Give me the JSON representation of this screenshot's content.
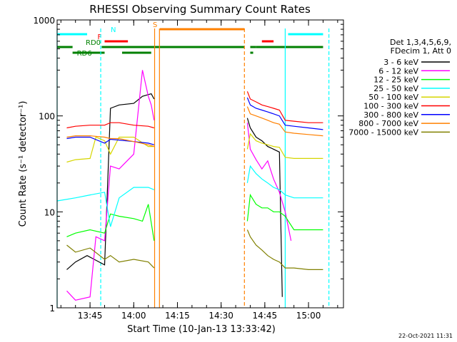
{
  "chart_data": {
    "type": "line",
    "title": "RHESSI Observing Summary Count Rates",
    "xlabel": "Start Time (10-Jan-13 13:33:42)",
    "ylabel": "Count Rate (s⁻¹ detector⁻¹)",
    "y_scale": "log",
    "ylim": [
      1,
      1000
    ],
    "xlim": [
      "13:33:42",
      "15:12:00"
    ],
    "x_ticks": [
      "13:45",
      "14:00",
      "14:15",
      "14:30",
      "14:45",
      "15:00"
    ],
    "y_ticks": [
      "1",
      "10",
      "100",
      "1000"
    ],
    "legend_header": [
      "Det 1,3,4,5,6,9,",
      "FDecim 1, Att 0"
    ],
    "legend_position": "right",
    "series": [
      {
        "name": "3 - 6 keV",
        "color": "#000000",
        "segments": [
          {
            "x": [
              "13:37",
              "13:40",
              "13:44",
              "13:50",
              "13:52",
              "13:55",
              "14:00",
              "14:03",
              "14:06",
              "14:07"
            ],
            "y": [
              2.5,
              3.0,
              3.5,
              2.8,
              120,
              130,
              135,
              160,
              170,
              150
            ]
          },
          {
            "x": [
              "14:39",
              "14:40",
              "14:42",
              "14:44",
              "14:46",
              "14:48",
              "14:50",
              "14:51"
            ],
            "y": [
              95,
              75,
              60,
              55,
              48,
              45,
              42,
              1.3
            ]
          }
        ]
      },
      {
        "name": "6 - 12 keV",
        "color": "#ff00ff",
        "segments": [
          {
            "x": [
              "13:37",
              "13:40",
              "13:45",
              "13:47",
              "13:50",
              "13:52",
              "13:55",
              "14:00",
              "14:03",
              "14:05",
              "14:06",
              "14:07"
            ],
            "y": [
              1.5,
              1.2,
              1.3,
              5.5,
              5.0,
              30,
              28,
              40,
              300,
              160,
              130,
              90
            ]
          },
          {
            "x": [
              "14:39",
              "14:40",
              "14:42",
              "14:44",
              "14:46",
              "14:48",
              "14:50",
              "14:52",
              "14:54"
            ],
            "y": [
              85,
              45,
              35,
              28,
              34,
              22,
              16,
              10,
              5
            ]
          }
        ]
      },
      {
        "name": "12 - 25 keV",
        "color": "#00ff00",
        "segments": [
          {
            "x": [
              "13:37",
              "13:40",
              "13:45",
              "13:50",
              "13:52",
              "13:55",
              "14:00",
              "14:03",
              "14:05",
              "14:07"
            ],
            "y": [
              5.5,
              6.0,
              6.5,
              6.0,
              9.5,
              9.0,
              8.5,
              8.0,
              12,
              5.0
            ]
          },
          {
            "x": [
              "14:39",
              "14:40",
              "14:42",
              "14:44",
              "14:46",
              "14:48",
              "14:50",
              "14:52",
              "14:55",
              "15:00",
              "15:05"
            ],
            "y": [
              8,
              15,
              12,
              11,
              11,
              10,
              10,
              9,
              6.5,
              6.5,
              6.5
            ]
          }
        ]
      },
      {
        "name": "25 - 50 keV",
        "color": "#00ffff",
        "segments": [
          {
            "x": [
              "13:33:42",
              "13:40",
              "13:45",
              "13:50",
              "13:52",
              "13:55",
              "14:00",
              "14:05",
              "14:07"
            ],
            "y": [
              13,
              14,
              15,
              16,
              7.0,
              14,
              18,
              18,
              17
            ]
          },
          {
            "x": [
              "14:39",
              "14:40",
              "14:42",
              "14:44",
              "14:46",
              "14:48",
              "14:50",
              "14:52",
              "14:55",
              "15:00",
              "15:05"
            ],
            "y": [
              20,
              30,
              25,
              22,
              20,
              18,
              17,
              15,
              14,
              14,
              14
            ]
          }
        ]
      },
      {
        "name": "50 - 100 keV",
        "color": "#d6d600",
        "segments": [
          {
            "x": [
              "13:37",
              "13:40",
              "13:45",
              "13:47",
              "13:50",
              "13:52",
              "13:55",
              "14:00",
              "14:05",
              "14:07"
            ],
            "y": [
              33,
              35,
              36,
              60,
              55,
              40,
              60,
              60,
              48,
              48
            ]
          },
          {
            "x": [
              "14:39",
              "14:40",
              "14:42",
              "14:44",
              "14:46",
              "14:48",
              "14:50",
              "14:52",
              "14:55",
              "15:00",
              "15:05"
            ],
            "y": [
              45,
              65,
              55,
              52,
              50,
              48,
              47,
              37,
              36,
              36,
              36
            ]
          }
        ]
      },
      {
        "name": "100 - 300 keV",
        "color": "#ff0000",
        "segments": [
          {
            "x": [
              "13:37",
              "13:40",
              "13:45",
              "13:50",
              "13:52",
              "13:55",
              "14:00",
              "14:05",
              "14:07"
            ],
            "y": [
              75,
              78,
              80,
              80,
              85,
              85,
              80,
              78,
              75
            ]
          },
          {
            "x": [
              "14:39",
              "14:40",
              "14:42",
              "14:44",
              "14:46",
              "14:48",
              "14:50",
              "14:52",
              "14:55",
              "15:00",
              "15:05"
            ],
            "y": [
              180,
              150,
              140,
              130,
              125,
              120,
              115,
              90,
              88,
              85,
              85
            ]
          }
        ]
      },
      {
        "name": "300 - 800 keV",
        "color": "#0000ff",
        "segments": [
          {
            "x": [
              "13:37",
              "13:40",
              "13:45",
              "13:50",
              "13:52",
              "13:55",
              "14:00",
              "14:05",
              "14:07"
            ],
            "y": [
              58,
              60,
              60,
              52,
              57,
              56,
              54,
              52,
              50
            ]
          },
          {
            "x": [
              "14:39",
              "14:40",
              "14:42",
              "14:44",
              "14:46",
              "14:48",
              "14:50",
              "14:52",
              "14:55",
              "15:00",
              "15:05"
            ],
            "y": [
              155,
              130,
              120,
              115,
              110,
              105,
              100,
              80,
              78,
              75,
              72
            ]
          }
        ]
      },
      {
        "name": "800 - 7000 keV",
        "color": "#ff8000",
        "segments": [
          {
            "x": [
              "13:37",
              "13:40",
              "13:45",
              "13:50",
              "13:52",
              "13:55",
              "14:00",
              "14:05",
              "14:07"
            ],
            "y": [
              60,
              62,
              62,
              60,
              58,
              58,
              54,
              50,
              48
            ]
          },
          {
            "x": [
              "14:39",
              "14:40",
              "14:42",
              "14:44",
              "14:46",
              "14:48",
              "14:50",
              "14:52",
              "14:55",
              "15:00",
              "15:05"
            ],
            "y": [
              125,
              105,
              100,
              95,
              90,
              85,
              82,
              68,
              66,
              64,
              62
            ]
          }
        ]
      },
      {
        "name": "7000 - 15000 keV",
        "color": "#808000",
        "segments": [
          {
            "x": [
              "13:37",
              "13:40",
              "13:45",
              "13:50",
              "13:52",
              "13:55",
              "14:00",
              "14:05",
              "14:07"
            ],
            "y": [
              4.5,
              3.8,
              4.2,
              3.2,
              3.5,
              3.0,
              3.2,
              3.0,
              2.6
            ]
          },
          {
            "x": [
              "14:39",
              "14:40",
              "14:42",
              "14:44",
              "14:46",
              "14:48",
              "14:50",
              "14:52",
              "14:55",
              "15:00",
              "15:05"
            ],
            "y": [
              6.5,
              5.5,
              4.5,
              4.0,
              3.5,
              3.2,
              3.0,
              2.6,
              2.6,
              2.5,
              2.5
            ]
          }
        ]
      }
    ],
    "flag_bars": [
      {
        "label": "N",
        "color": "#00ffff",
        "segments": [
          [
            "13:33:42",
            "13:44"
          ],
          [
            "14:53",
            "15:05"
          ]
        ],
        "row": "N"
      },
      {
        "label": "F",
        "color": "#ff0000",
        "segments": [
          [
            "13:50",
            "13:58"
          ],
          [
            "14:44",
            "14:48"
          ]
        ],
        "row": "F"
      },
      {
        "label": "S",
        "color": "#ff8000",
        "segments": [
          [
            "14:09",
            "14:38"
          ]
        ],
        "row": "S"
      },
      {
        "label": "RD0",
        "color": "#008000",
        "segments": [
          [
            "13:33:42",
            "13:39"
          ],
          [
            "13:49",
            "14:38"
          ],
          [
            "14:40",
            "14:42"
          ],
          [
            "14:42",
            "15:05"
          ]
        ],
        "row": "RD0"
      },
      {
        "label": "RD6",
        "color": "#008000",
        "segments": [
          [
            "13:39",
            "13:50"
          ],
          [
            "13:56",
            "14:06"
          ],
          [
            "14:40",
            "14:41"
          ]
        ],
        "row": "RD6"
      }
    ],
    "vlines": [
      {
        "x": "13:33:42",
        "color": "#00ffff",
        "style": "solid"
      },
      {
        "x": "13:48:40",
        "color": "#00ffff",
        "style": "dashed"
      },
      {
        "x": "14:07:10",
        "color": "#ff8000",
        "style": "solid"
      },
      {
        "x": "14:08:50",
        "color": "#ff8000",
        "style": "solid"
      },
      {
        "x": "14:38",
        "color": "#ff8000",
        "style": "dashed"
      },
      {
        "x": "14:52",
        "color": "#00ffff",
        "style": "solid"
      },
      {
        "x": "15:07",
        "color": "#00ffff",
        "style": "dashed"
      }
    ]
  },
  "footer": {
    "date_stamp": "22-Oct-2021 11:31"
  }
}
